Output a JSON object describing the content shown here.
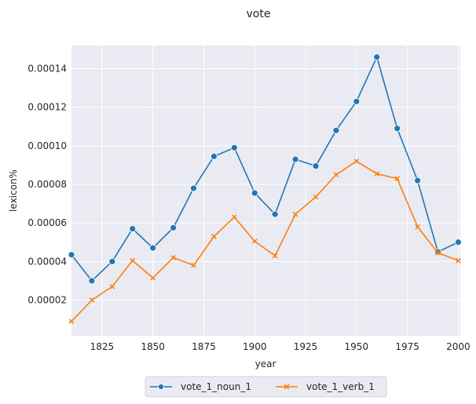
{
  "chart_data": {
    "type": "line",
    "title": "vote",
    "xlabel": "year",
    "ylabel": "lexicon%",
    "x": [
      1810,
      1820,
      1830,
      1840,
      1850,
      1860,
      1870,
      1880,
      1890,
      1900,
      1910,
      1920,
      1930,
      1940,
      1950,
      1960,
      1970,
      1980,
      1990,
      2000
    ],
    "series": [
      {
        "name": "vote_1_noun_1",
        "color": "#1f77b4",
        "marker": "circle",
        "values": [
          4.35e-05,
          3e-05,
          4e-05,
          5.7e-05,
          4.7e-05,
          5.75e-05,
          7.8e-05,
          9.45e-05,
          9.9e-05,
          7.55e-05,
          6.45e-05,
          9.3e-05,
          8.95e-05,
          0.000108,
          0.000123,
          0.000146,
          0.000109,
          8.2e-05,
          4.5e-05,
          5e-05
        ]
      },
      {
        "name": "vote_1_verb_1",
        "color": "#ff7f0e",
        "marker": "x",
        "values": [
          9e-06,
          2e-05,
          2.7e-05,
          4.05e-05,
          3.15e-05,
          4.2e-05,
          3.8e-05,
          5.3e-05,
          6.3e-05,
          5.05e-05,
          4.3e-05,
          6.45e-05,
          7.35e-05,
          8.5e-05,
          9.2e-05,
          8.55e-05,
          8.3e-05,
          5.8e-05,
          4.45e-05,
          4.05e-05
        ]
      }
    ],
    "xlim": [
      1810,
      2001
    ],
    "ylim": [
      1.5e-06,
      0.000152
    ],
    "xticks": [
      "1825",
      "1850",
      "1875",
      "1900",
      "1925",
      "1950",
      "1975",
      "2000"
    ],
    "yticks": [
      "0.00002",
      "0.00004",
      "0.00006",
      "0.00008",
      "0.00010",
      "0.00012",
      "0.00014"
    ],
    "grid": true,
    "legend_position": "bottom-center",
    "background": "#eaeaf2"
  }
}
